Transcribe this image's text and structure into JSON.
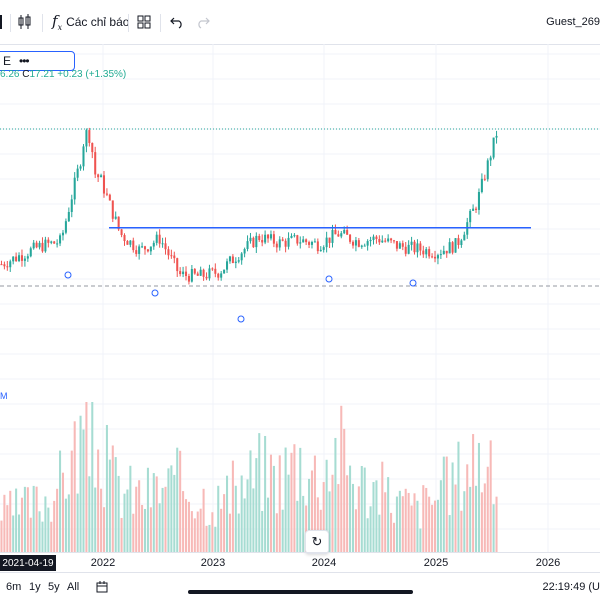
{
  "toolbar": {
    "indicators_label": "Các chỉ báo",
    "fx_symbol": "f",
    "fx_sub": "x",
    "user": "Guest_269"
  },
  "symbol": {
    "text": "E",
    "more": "•••"
  },
  "ohlc": {
    "low_fragment": "6.26",
    "close_label": "C",
    "close": "17.21",
    "change": "+0.23",
    "change_pct": "(+1.35%)"
  },
  "volume_label": "M",
  "date_tooltip": "2021-04-19",
  "time_axis": [
    "2022",
    "2023",
    "2024",
    "2025",
    "2026"
  ],
  "range_buttons": [
    "6m",
    "1y",
    "5y",
    "All"
  ],
  "clock": "22:19:49 (U",
  "colors": {
    "up": "#26a69a",
    "down": "#ef5350",
    "trendline": "#2962ff",
    "grid": "#f0f3fa",
    "dashed": "#9598a1"
  },
  "chart_data": {
    "type": "candlestick",
    "x": [
      "2021-04",
      "2021-06",
      "2021-08",
      "2021-10",
      "2021-12",
      "2022-02",
      "2022-04",
      "2022-06",
      "2022-08",
      "2022-10",
      "2022-12",
      "2023-02",
      "2023-04",
      "2023-06",
      "2023-08",
      "2023-10",
      "2023-12",
      "2024-02",
      "2024-04",
      "2024-06",
      "2024-08",
      "2024-10",
      "2024-12",
      "2025-02",
      "2025-04",
      "2025-06"
    ],
    "close": [
      8.6,
      9.2,
      9.8,
      10.1,
      15.5,
      14.2,
      10.6,
      9.5,
      10.3,
      7.9,
      7.8,
      8.1,
      9.3,
      10.4,
      10.0,
      10.2,
      9.9,
      10.6,
      10.1,
      10.3,
      9.8,
      9.6,
      9.4,
      9.9,
      12.6,
      17.21
    ],
    "volume": [
      0.3,
      0.35,
      0.4,
      0.55,
      0.9,
      0.75,
      0.5,
      0.45,
      0.5,
      0.55,
      0.45,
      0.4,
      0.5,
      0.65,
      0.6,
      0.75,
      0.6,
      0.85,
      0.55,
      0.5,
      0.4,
      0.35,
      0.45,
      0.6,
      0.8,
      0.5
    ],
    "horizontal_line": 11.0
  }
}
